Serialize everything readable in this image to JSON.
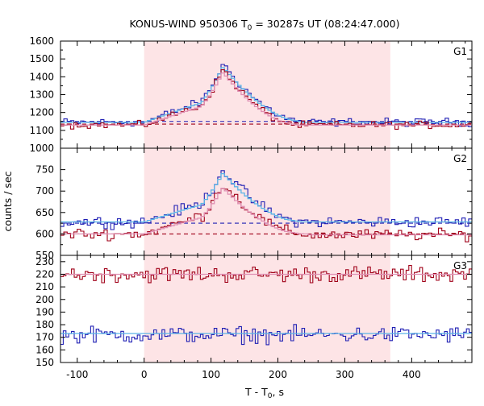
{
  "chart_data": {
    "type": "line",
    "title": {
      "main": "KONUS-WIND 950306 T",
      "sub": "0",
      "rest": " = 30287s UT (08:24:47.000)"
    },
    "xlabel": {
      "main": "T - T",
      "sub": "0",
      "rest": ", s"
    },
    "ylabel": "counts / sec",
    "xlim": [
      -125,
      490
    ],
    "xticks": [
      -100,
      0,
      100,
      200,
      300,
      400
    ],
    "xtick_labels": [
      "-100",
      "0",
      "100",
      "200",
      "300",
      "400"
    ],
    "highlight_interval": [
      0,
      368
    ],
    "colors": {
      "blue": "#1f1fb4",
      "red": "#a00018",
      "light_blue": "#5ab4e6",
      "pink": "#e090b4",
      "highlight": "#fde4e6"
    },
    "panels": [
      {
        "name": "G1",
        "ylim": [
          1000,
          1600
        ],
        "yticks": [
          1000,
          1100,
          1200,
          1300,
          1400,
          1500,
          1600
        ],
        "ytick_labels": [
          "1000",
          "1100",
          "1200",
          "1300",
          "1400",
          "1500",
          "1600"
        ],
        "background_levels": {
          "blue": 1150,
          "red": 1135
        },
        "series": [
          {
            "color": "blue",
            "profile": {
              "base": 1145,
              "noise": 16,
              "tail_base": 1145,
              "peak_t": 118,
              "peak": 1470,
              "rise_start": 0,
              "fall_end": 240
            }
          },
          {
            "color": "light_blue",
            "profile": {
              "base": 1145,
              "noise": 0,
              "tail_base": 1145,
              "peak_t": 118,
              "peak": 1455,
              "rise_start": 0,
              "fall_end": 240
            }
          },
          {
            "color": "red",
            "profile": {
              "base": 1130,
              "noise": 14,
              "tail_base": 1130,
              "peak_t": 118,
              "peak": 1440,
              "rise_start": 0,
              "fall_end": 230
            }
          },
          {
            "color": "pink",
            "profile": {
              "base": 1130,
              "noise": 0,
              "tail_base": 1130,
              "peak_t": 118,
              "peak": 1425,
              "rise_start": 0,
              "fall_end": 230
            }
          }
        ]
      },
      {
        "name": "G2",
        "ylim": [
          550,
          800
        ],
        "yticks": [
          550,
          600,
          650,
          700,
          750
        ],
        "ytick_labels": [
          "550",
          "600",
          "650",
          "700",
          "750"
        ],
        "background_levels": {
          "blue": 625,
          "red": 600
        },
        "series": [
          {
            "color": "blue",
            "profile": {
              "base": 628,
              "noise": 9,
              "tail_base": 628,
              "peak_t": 118,
              "peak": 750,
              "rise_start": 0,
              "fall_end": 235
            }
          },
          {
            "color": "light_blue",
            "profile": {
              "base": 628,
              "noise": 0,
              "tail_base": 628,
              "peak_t": 118,
              "peak": 742,
              "rise_start": 0,
              "fall_end": 235
            }
          },
          {
            "color": "red",
            "profile": {
              "base": 600,
              "noise": 9,
              "tail_base": 598,
              "peak_t": 118,
              "peak": 718,
              "rise_start": 0,
              "fall_end": 235
            }
          },
          {
            "color": "pink",
            "profile": {
              "base": 600,
              "noise": 0,
              "tail_base": 598,
              "peak_t": 118,
              "peak": 708,
              "rise_start": 0,
              "fall_end": 235
            }
          }
        ]
      },
      {
        "name": "G3",
        "ylim": [
          150,
          235
        ],
        "yticks": [
          150,
          160,
          170,
          180,
          190,
          200,
          210,
          220,
          230
        ],
        "ytick_labels": [
          "150",
          "160",
          "170",
          "180",
          "190",
          "200",
          "210",
          "220",
          "230"
        ],
        "background_levels": {},
        "series": [
          {
            "color": "red",
            "profile": {
              "base": 220,
              "noise": 4.5,
              "tail_base": 220,
              "peak_t": 118,
              "peak": 220,
              "rise_start": 0,
              "fall_end": 240
            }
          },
          {
            "color": "pink",
            "profile": {
              "base": 220,
              "noise": 0,
              "tail_base": 220,
              "peak_t": 118,
              "peak": 220,
              "rise_start": 0,
              "fall_end": 240
            }
          },
          {
            "color": "blue",
            "profile": {
              "base": 172,
              "noise": 4.5,
              "tail_base": 172,
              "peak_t": 118,
              "peak": 172,
              "rise_start": 0,
              "fall_end": 240
            }
          },
          {
            "color": "light_blue",
            "profile": {
              "base": 173,
              "noise": 0,
              "tail_base": 173,
              "peak_t": 118,
              "peak": 173,
              "rise_start": 0,
              "fall_end": 240
            }
          }
        ]
      }
    ]
  }
}
